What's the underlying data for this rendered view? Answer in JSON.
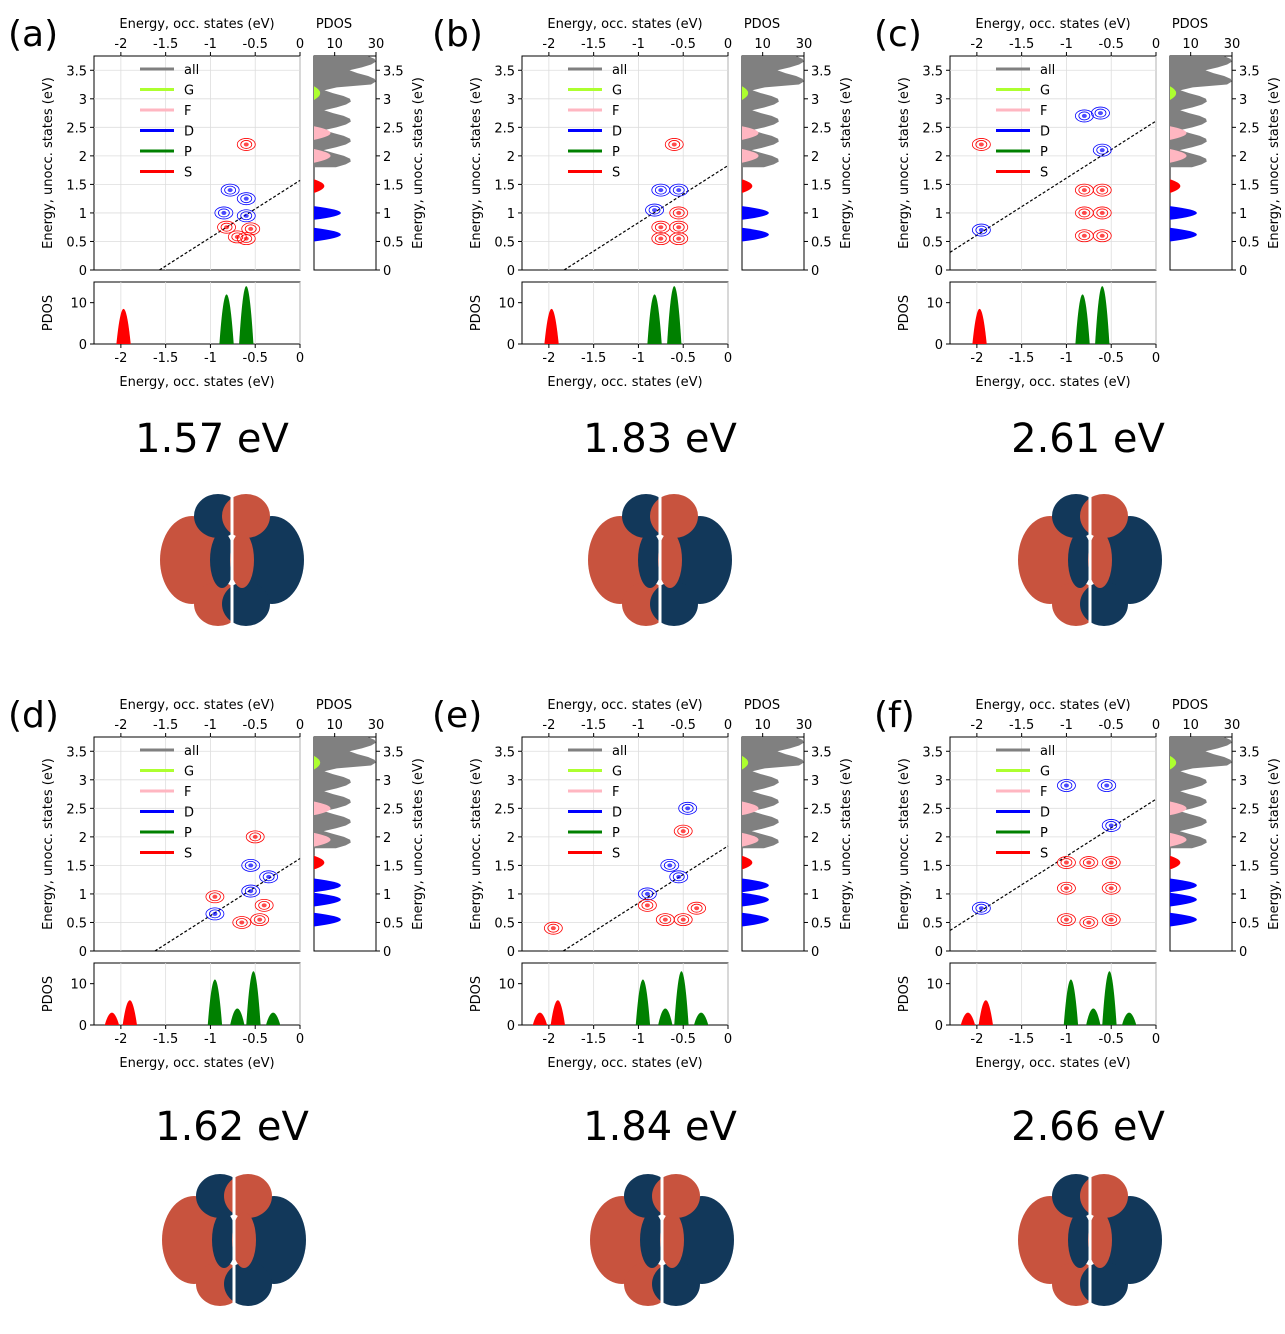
{
  "figure": {
    "axis_labels": {
      "x_occ": "Energy, occ. states (eV)",
      "y_unocc": "Energy, unocc. states (eV)",
      "pdos": "PDOS"
    },
    "x_ticks": [
      "-2",
      "-1.5",
      "-1",
      "-0.5",
      "0"
    ],
    "y_ticks": [
      "0",
      "0.5",
      "1",
      "1.5",
      "2",
      "2.5",
      "3",
      "3.5"
    ],
    "pdos_top_ticks": [
      "10",
      "30"
    ],
    "pdos_left_ticks": [
      "0",
      "10"
    ],
    "legend": [
      {
        "label": "all",
        "color": "#808080"
      },
      {
        "label": "G",
        "color": "#adff2f"
      },
      {
        "label": "F",
        "color": "#ffb6c1"
      },
      {
        "label": "D",
        "color": "#0000ff"
      },
      {
        "label": "P",
        "color": "#008000"
      },
      {
        "label": "S",
        "color": "#ff0000"
      }
    ],
    "colors": {
      "occupied_contour": "#ff0000",
      "unoccupied_contour": "#0000ff",
      "isosurface_positive": "#c8533e",
      "isosurface_negative": "#12385a"
    }
  },
  "chart_data": [
    {
      "type": "scatter",
      "panel": "(a)",
      "excitation_energy": "1.57 eV",
      "xlim": [
        -2.3,
        0
      ],
      "ylim": [
        0,
        3.75
      ],
      "pdos_xlim": [
        0,
        30
      ],
      "pdos_ylim": [
        0,
        15
      ],
      "excitation_line_eV": 1.57,
      "occupied_peaks": [
        {
          "e": -1.97,
          "h": 8.5,
          "c": "S"
        },
        {
          "e": -0.82,
          "h": 12,
          "c": "P"
        },
        {
          "e": -0.6,
          "h": 14,
          "c": "P"
        }
      ],
      "unoccupied_peaks": [
        {
          "e": 0.62,
          "c": "D"
        },
        {
          "e": 1.0,
          "c": "D"
        },
        {
          "e": 1.47,
          "c": "S"
        },
        {
          "e": 2.0,
          "c": "F"
        },
        {
          "e": 2.4,
          "c": "F"
        },
        {
          "e": 3.1,
          "c": "G"
        }
      ],
      "contours": [
        {
          "x": -0.78,
          "y": 1.4,
          "c": "D"
        },
        {
          "x": -0.6,
          "y": 1.25,
          "c": "D"
        },
        {
          "x": -0.6,
          "y": 0.95,
          "c": "D"
        },
        {
          "x": -0.85,
          "y": 1.0,
          "c": "D"
        },
        {
          "x": -0.82,
          "y": 0.75,
          "c": "S"
        },
        {
          "x": -0.7,
          "y": 0.58,
          "c": "S"
        },
        {
          "x": -0.55,
          "y": 0.72,
          "c": "S"
        },
        {
          "x": -0.6,
          "y": 0.55,
          "c": "S"
        },
        {
          "x": -0.6,
          "y": 2.2,
          "c": "S"
        }
      ]
    },
    {
      "type": "scatter",
      "panel": "(b)",
      "excitation_energy": "1.83 eV",
      "xlim": [
        -2.3,
        0
      ],
      "ylim": [
        0,
        3.75
      ],
      "pdos_xlim": [
        0,
        30
      ],
      "pdos_ylim": [
        0,
        15
      ],
      "excitation_line_eV": 1.83,
      "occupied_peaks": [
        {
          "e": -1.97,
          "h": 8.5,
          "c": "S"
        },
        {
          "e": -0.82,
          "h": 12,
          "c": "P"
        },
        {
          "e": -0.6,
          "h": 14,
          "c": "P"
        }
      ],
      "unoccupied_peaks": [
        {
          "e": 0.62,
          "c": "D"
        },
        {
          "e": 1.0,
          "c": "D"
        },
        {
          "e": 1.47,
          "c": "S"
        },
        {
          "e": 2.0,
          "c": "F"
        },
        {
          "e": 2.4,
          "c": "F"
        },
        {
          "e": 3.1,
          "c": "G"
        }
      ],
      "contours": [
        {
          "x": -0.82,
          "y": 1.05,
          "c": "D"
        },
        {
          "x": -0.75,
          "y": 1.4,
          "c": "D"
        },
        {
          "x": -0.55,
          "y": 1.4,
          "c": "D"
        },
        {
          "x": -0.55,
          "y": 1.0,
          "c": "S"
        },
        {
          "x": -0.75,
          "y": 0.75,
          "c": "S"
        },
        {
          "x": -0.55,
          "y": 0.75,
          "c": "S"
        },
        {
          "x": -0.75,
          "y": 0.55,
          "c": "S"
        },
        {
          "x": -0.55,
          "y": 0.55,
          "c": "S"
        },
        {
          "x": -0.6,
          "y": 2.2,
          "c": "S"
        }
      ]
    },
    {
      "type": "scatter",
      "panel": "(c)",
      "excitation_energy": "2.61 eV",
      "xlim": [
        -2.3,
        0
      ],
      "ylim": [
        0,
        3.75
      ],
      "pdos_xlim": [
        0,
        30
      ],
      "pdos_ylim": [
        0,
        15
      ],
      "excitation_line_eV": 2.61,
      "occupied_peaks": [
        {
          "e": -1.97,
          "h": 8.5,
          "c": "S"
        },
        {
          "e": -0.82,
          "h": 12,
          "c": "P"
        },
        {
          "e": -0.6,
          "h": 14,
          "c": "P"
        }
      ],
      "unoccupied_peaks": [
        {
          "e": 0.62,
          "c": "D"
        },
        {
          "e": 1.0,
          "c": "D"
        },
        {
          "e": 1.47,
          "c": "S"
        },
        {
          "e": 2.0,
          "c": "F"
        },
        {
          "e": 2.4,
          "c": "F"
        },
        {
          "e": 3.1,
          "c": "G"
        }
      ],
      "contours": [
        {
          "x": -1.95,
          "y": 0.7,
          "c": "D"
        },
        {
          "x": -1.95,
          "y": 2.2,
          "c": "S"
        },
        {
          "x": -0.62,
          "y": 2.75,
          "c": "D"
        },
        {
          "x": -0.6,
          "y": 2.1,
          "c": "D"
        },
        {
          "x": -0.8,
          "y": 2.7,
          "c": "D"
        },
        {
          "x": -0.8,
          "y": 1.4,
          "c": "S"
        },
        {
          "x": -0.6,
          "y": 1.4,
          "c": "S"
        },
        {
          "x": -0.8,
          "y": 1.0,
          "c": "S"
        },
        {
          "x": -0.6,
          "y": 1.0,
          "c": "S"
        },
        {
          "x": -0.8,
          "y": 0.6,
          "c": "S"
        },
        {
          "x": -0.6,
          "y": 0.6,
          "c": "S"
        }
      ]
    },
    {
      "type": "scatter",
      "panel": "(d)",
      "excitation_energy": "1.62 eV",
      "xlim": [
        -2.3,
        0
      ],
      "ylim": [
        0,
        3.75
      ],
      "pdos_xlim": [
        0,
        30
      ],
      "pdos_ylim": [
        0,
        15
      ],
      "excitation_line_eV": 1.62,
      "occupied_peaks": [
        {
          "e": -2.1,
          "h": 3,
          "c": "S"
        },
        {
          "e": -1.9,
          "h": 6,
          "c": "S"
        },
        {
          "e": -0.95,
          "h": 11,
          "c": "P"
        },
        {
          "e": -0.7,
          "h": 4,
          "c": "P"
        },
        {
          "e": -0.52,
          "h": 13,
          "c": "P"
        },
        {
          "e": -0.3,
          "h": 3,
          "c": "P"
        }
      ],
      "unoccupied_peaks": [
        {
          "e": 0.55,
          "c": "D"
        },
        {
          "e": 0.9,
          "c": "D"
        },
        {
          "e": 1.15,
          "c": "D"
        },
        {
          "e": 1.55,
          "c": "S"
        },
        {
          "e": 1.95,
          "c": "F"
        },
        {
          "e": 2.5,
          "c": "F"
        },
        {
          "e": 3.3,
          "c": "G"
        }
      ],
      "contours": [
        {
          "x": -0.95,
          "y": 0.65,
          "c": "D"
        },
        {
          "x": -0.55,
          "y": 1.05,
          "c": "D"
        },
        {
          "x": -0.55,
          "y": 1.5,
          "c": "D"
        },
        {
          "x": -0.35,
          "y": 1.3,
          "c": "D"
        },
        {
          "x": -0.95,
          "y": 0.95,
          "c": "S"
        },
        {
          "x": -0.65,
          "y": 0.5,
          "c": "S"
        },
        {
          "x": -0.45,
          "y": 0.55,
          "c": "S"
        },
        {
          "x": -0.4,
          "y": 0.8,
          "c": "S"
        },
        {
          "x": -0.5,
          "y": 2.0,
          "c": "S"
        }
      ]
    },
    {
      "type": "scatter",
      "panel": "(e)",
      "excitation_energy": "1.84 eV",
      "xlim": [
        -2.3,
        0
      ],
      "ylim": [
        0,
        3.75
      ],
      "pdos_xlim": [
        0,
        30
      ],
      "pdos_ylim": [
        0,
        15
      ],
      "excitation_line_eV": 1.84,
      "occupied_peaks": [
        {
          "e": -2.1,
          "h": 3,
          "c": "S"
        },
        {
          "e": -1.9,
          "h": 6,
          "c": "S"
        },
        {
          "e": -0.95,
          "h": 11,
          "c": "P"
        },
        {
          "e": -0.7,
          "h": 4,
          "c": "P"
        },
        {
          "e": -0.52,
          "h": 13,
          "c": "P"
        },
        {
          "e": -0.3,
          "h": 3,
          "c": "P"
        }
      ],
      "unoccupied_peaks": [
        {
          "e": 0.55,
          "c": "D"
        },
        {
          "e": 0.9,
          "c": "D"
        },
        {
          "e": 1.15,
          "c": "D"
        },
        {
          "e": 1.55,
          "c": "S"
        },
        {
          "e": 1.95,
          "c": "F"
        },
        {
          "e": 2.5,
          "c": "F"
        },
        {
          "e": 3.3,
          "c": "G"
        }
      ],
      "contours": [
        {
          "x": -0.9,
          "y": 1.0,
          "c": "D"
        },
        {
          "x": -0.55,
          "y": 1.3,
          "c": "D"
        },
        {
          "x": -0.65,
          "y": 1.5,
          "c": "D"
        },
        {
          "x": -0.45,
          "y": 2.5,
          "c": "D"
        },
        {
          "x": -0.9,
          "y": 0.8,
          "c": "S"
        },
        {
          "x": -0.5,
          "y": 0.55,
          "c": "S"
        },
        {
          "x": -0.35,
          "y": 0.75,
          "c": "S"
        },
        {
          "x": -0.7,
          "y": 0.55,
          "c": "S"
        },
        {
          "x": -0.5,
          "y": 2.1,
          "c": "S"
        },
        {
          "x": -1.95,
          "y": 0.4,
          "c": "S"
        }
      ]
    },
    {
      "type": "scatter",
      "panel": "(f)",
      "excitation_energy": "2.66 eV",
      "xlim": [
        -2.3,
        0
      ],
      "ylim": [
        0,
        3.75
      ],
      "pdos_xlim": [
        0,
        30
      ],
      "pdos_ylim": [
        0,
        15
      ],
      "excitation_line_eV": 2.66,
      "occupied_peaks": [
        {
          "e": -2.1,
          "h": 3,
          "c": "S"
        },
        {
          "e": -1.9,
          "h": 6,
          "c": "S"
        },
        {
          "e": -0.95,
          "h": 11,
          "c": "P"
        },
        {
          "e": -0.7,
          "h": 4,
          "c": "P"
        },
        {
          "e": -0.52,
          "h": 13,
          "c": "P"
        },
        {
          "e": -0.3,
          "h": 3,
          "c": "P"
        }
      ],
      "unoccupied_peaks": [
        {
          "e": 0.55,
          "c": "D"
        },
        {
          "e": 0.9,
          "c": "D"
        },
        {
          "e": 1.15,
          "c": "D"
        },
        {
          "e": 1.55,
          "c": "S"
        },
        {
          "e": 1.95,
          "c": "F"
        },
        {
          "e": 2.5,
          "c": "F"
        },
        {
          "e": 3.3,
          "c": "G"
        }
      ],
      "contours": [
        {
          "x": -1.95,
          "y": 0.75,
          "c": "D"
        },
        {
          "x": -1.0,
          "y": 2.9,
          "c": "D"
        },
        {
          "x": -0.5,
          "y": 2.2,
          "c": "D"
        },
        {
          "x": -0.55,
          "y": 2.9,
          "c": "D"
        },
        {
          "x": -1.0,
          "y": 1.55,
          "c": "S"
        },
        {
          "x": -0.75,
          "y": 1.55,
          "c": "S"
        },
        {
          "x": -0.5,
          "y": 1.55,
          "c": "S"
        },
        {
          "x": -1.0,
          "y": 1.1,
          "c": "S"
        },
        {
          "x": -0.5,
          "y": 1.1,
          "c": "S"
        },
        {
          "x": -1.0,
          "y": 0.55,
          "c": "S"
        },
        {
          "x": -0.75,
          "y": 0.5,
          "c": "S"
        },
        {
          "x": -0.5,
          "y": 0.55,
          "c": "S"
        }
      ]
    }
  ]
}
